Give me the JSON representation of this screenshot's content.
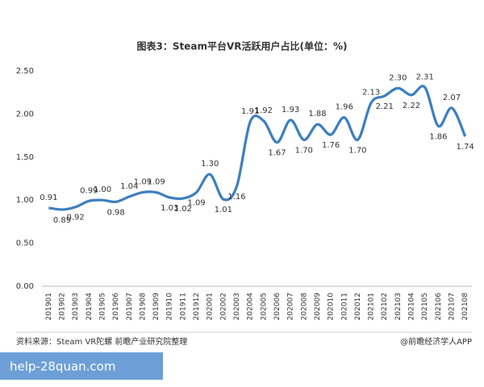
{
  "chart_data": {
    "type": "line",
    "title": "图表3：Steam平台VR活跃用户占比(单位：%)",
    "categories": [
      "201901",
      "201902",
      "201903",
      "201904",
      "201905",
      "201906",
      "201907",
      "201908",
      "201909",
      "201910",
      "201911",
      "201912",
      "202001",
      "202002",
      "202003",
      "202004",
      "202005",
      "202006",
      "202007",
      "202008",
      "202009",
      "202010",
      "202011",
      "202012",
      "202101",
      "202102",
      "202103",
      "202104",
      "202105",
      "202106",
      "202107",
      "202108"
    ],
    "values": [
      0.91,
      0.89,
      0.92,
      0.99,
      1.0,
      0.98,
      1.04,
      1.09,
      1.09,
      1.03,
      1.02,
      1.09,
      1.3,
      1.01,
      1.16,
      1.91,
      1.92,
      1.67,
      1.93,
      1.7,
      1.88,
      1.76,
      1.96,
      1.7,
      2.13,
      2.21,
      2.3,
      2.22,
      2.31,
      1.86,
      2.07,
      1.74
    ],
    "value_labels": [
      "0.91",
      "0.89",
      "0.92",
      "0.99",
      "1.00",
      "0.98",
      "1.04",
      "1.09",
      "1.09",
      "1.03",
      "1.02",
      "1.09",
      "1.30",
      "1.01",
      "1.16",
      "1.91",
      "1.92",
      "1.67",
      "1.93",
      "1.70",
      "1.88",
      "1.76",
      "1.96",
      "1.70",
      "2.13",
      "2.21",
      "2.30",
      "2.22",
      "2.31",
      "1.86",
      "2.07",
      "1.74"
    ],
    "color": "#3d7fc0",
    "ylim": [
      0,
      2.5
    ],
    "yticks": [
      {
        "value": 0,
        "label": "0.00"
      },
      {
        "value": 0.5,
        "label": "0.50"
      },
      {
        "value": 1,
        "label": "1.00"
      },
      {
        "value": 1.5,
        "label": "1.50"
      },
      {
        "value": 2,
        "label": "2.00"
      },
      {
        "value": 2.5,
        "label": "2.50"
      }
    ],
    "grid": false,
    "source": "资料来源：Steam VR陀螺 前瞻产业研究院整理",
    "credit": "@前瞻经济学人APP"
  },
  "overlay_text": "help-28quan.com"
}
